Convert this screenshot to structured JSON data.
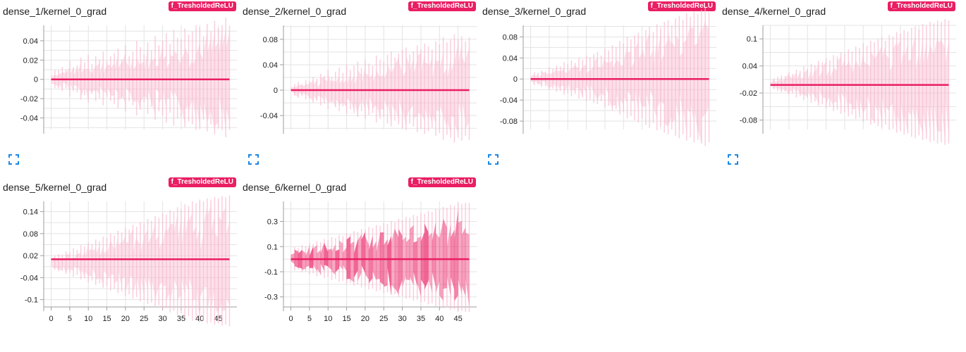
{
  "colors": {
    "accent": "#e91e63",
    "fill_light": "#f8bbd0",
    "grid": "#e3e3e3"
  },
  "icons": {
    "expand": "expand-icon"
  },
  "charts": [
    {
      "title": "dense_1/kernel_0_grad",
      "run_badge": "f_TresholdedReLU",
      "has_expand": true,
      "band": "light",
      "chart_data": {
        "type": "area",
        "y_ticks": [
          0.04,
          0.02,
          0,
          -0.02,
          -0.04
        ],
        "y_tick_labels": [
          "0.04",
          "0.02",
          "0",
          "-0.02",
          "-0.04"
        ],
        "ylim": [
          -0.052,
          0.056
        ],
        "spread_per_step": [
          0.005,
          0.006,
          0.006,
          0.008,
          0.006,
          0.012,
          0.008,
          0.009,
          0.014,
          0.011,
          0.016,
          0.01,
          0.015,
          0.013,
          0.018,
          0.012,
          0.015,
          0.017,
          0.02,
          0.013,
          0.022,
          0.015,
          0.018,
          0.025,
          0.021,
          0.016,
          0.024,
          0.019,
          0.028,
          0.022,
          0.025,
          0.03,
          0.023,
          0.032,
          0.027,
          0.026,
          0.033,
          0.029,
          0.031,
          0.035,
          0.034,
          0.028,
          0.036,
          0.031,
          0.038,
          0.033,
          0.035,
          0.04,
          0.035
        ]
      }
    },
    {
      "title": "dense_2/kernel_0_grad",
      "run_badge": "f_TresholdedReLU",
      "has_expand": true,
      "band": "light",
      "chart_data": {
        "type": "area",
        "y_ticks": [
          0.08,
          0.04,
          0,
          -0.04
        ],
        "y_tick_labels": [
          "0.08",
          "0.04",
          "0",
          "-0.04"
        ],
        "ylim": [
          -0.062,
          0.102
        ],
        "spread_per_step": [
          0.004,
          0.006,
          0.008,
          0.006,
          0.01,
          0.009,
          0.013,
          0.011,
          0.016,
          0.014,
          0.02,
          0.013,
          0.018,
          0.022,
          0.017,
          0.025,
          0.02,
          0.024,
          0.028,
          0.022,
          0.03,
          0.026,
          0.024,
          0.034,
          0.03,
          0.028,
          0.035,
          0.038,
          0.032,
          0.036,
          0.04,
          0.042,
          0.035,
          0.038,
          0.044,
          0.04,
          0.046,
          0.043,
          0.04,
          0.048,
          0.045,
          0.052,
          0.047,
          0.05,
          0.055,
          0.05,
          0.053,
          0.048,
          0.052
        ]
      }
    },
    {
      "title": "dense_3/kernel_0_grad",
      "run_badge": "f_TresholdedReLU",
      "has_expand": true,
      "band": "light",
      "chart_data": {
        "type": "area",
        "y_ticks": [
          0.08,
          0.04,
          0,
          -0.04,
          -0.08
        ],
        "y_tick_labels": [
          "0.08",
          "0.04",
          "0",
          "-0.04",
          "-0.08"
        ],
        "ylim": [
          -0.096,
          0.102
        ],
        "spread_per_step": [
          0.004,
          0.008,
          0.007,
          0.01,
          0.009,
          0.014,
          0.012,
          0.016,
          0.015,
          0.02,
          0.018,
          0.022,
          0.019,
          0.025,
          0.023,
          0.028,
          0.026,
          0.03,
          0.032,
          0.028,
          0.036,
          0.034,
          0.04,
          0.038,
          0.045,
          0.042,
          0.05,
          0.047,
          0.052,
          0.055,
          0.05,
          0.058,
          0.062,
          0.056,
          0.065,
          0.06,
          0.068,
          0.07,
          0.064,
          0.072,
          0.075,
          0.07,
          0.078,
          0.074,
          0.08,
          0.077,
          0.082,
          0.085,
          0.08
        ]
      }
    },
    {
      "title": "dense_4/kernel_0_grad",
      "run_badge": "f_TresholdedReLU",
      "has_expand": true,
      "band": "light",
      "chart_data": {
        "type": "area",
        "y_ticks": [
          0.1,
          0.04,
          -0.02,
          -0.08
        ],
        "y_tick_labels": [
          "0.1",
          "0.04",
          "-0.02",
          "-0.08"
        ],
        "ylim": [
          -0.101,
          0.13
        ],
        "spread_per_step": [
          0.006,
          0.008,
          0.01,
          0.012,
          0.011,
          0.016,
          0.014,
          0.02,
          0.018,
          0.024,
          0.021,
          0.028,
          0.026,
          0.032,
          0.03,
          0.036,
          0.033,
          0.04,
          0.038,
          0.044,
          0.042,
          0.048,
          0.045,
          0.052,
          0.05,
          0.056,
          0.053,
          0.06,
          0.058,
          0.062,
          0.065,
          0.06,
          0.068,
          0.066,
          0.072,
          0.07,
          0.075,
          0.073,
          0.078,
          0.08,
          0.076,
          0.083,
          0.081,
          0.086,
          0.084,
          0.088,
          0.086,
          0.09,
          0.088
        ]
      }
    },
    {
      "title": "dense_5/kernel_0_grad",
      "run_badge": "f_TresholdedReLU",
      "has_expand": false,
      "band": "light",
      "chart_data": {
        "type": "area",
        "y_ticks": [
          0.14,
          0.08,
          0.02,
          -0.04,
          -0.1
        ],
        "y_tick_labels": [
          "0.14",
          "0.08",
          "0.02",
          "-0.04",
          "-0.1"
        ],
        "ylim": [
          -0.12,
          0.168
        ],
        "x_ticks": [
          0,
          5,
          10,
          15,
          20,
          25,
          30,
          35,
          40,
          45
        ],
        "x_tick_labels": [
          "0",
          "5",
          "10",
          "15",
          "20",
          "25",
          "30",
          "35",
          "40",
          "45"
        ],
        "xlim": [
          -2,
          50
        ],
        "spread_per_step": [
          0.01,
          0.012,
          0.015,
          0.014,
          0.02,
          0.018,
          0.025,
          0.022,
          0.03,
          0.028,
          0.035,
          0.032,
          0.04,
          0.037,
          0.045,
          0.042,
          0.05,
          0.047,
          0.055,
          0.052,
          0.06,
          0.057,
          0.065,
          0.062,
          0.07,
          0.067,
          0.075,
          0.072,
          0.08,
          0.077,
          0.085,
          0.082,
          0.09,
          0.087,
          0.095,
          0.092,
          0.1,
          0.097,
          0.105,
          0.102,
          0.108,
          0.105,
          0.11,
          0.108,
          0.112,
          0.11,
          0.114,
          0.112,
          0.115
        ]
      }
    },
    {
      "title": "dense_6/kernel_0_grad",
      "run_badge": "f_TresholdedReLU",
      "has_expand": false,
      "band": "dark",
      "chart_data": {
        "type": "area",
        "y_ticks": [
          0.3,
          0.1,
          -0.1,
          -0.3
        ],
        "y_tick_labels": [
          "0.3",
          "0.1",
          "-0.1",
          "-0.3"
        ],
        "ylim": [
          -0.38,
          0.46
        ],
        "x_ticks": [
          0,
          5,
          10,
          15,
          20,
          25,
          30,
          35,
          40,
          45
        ],
        "x_tick_labels": [
          "0",
          "5",
          "10",
          "15",
          "20",
          "25",
          "30",
          "35",
          "40",
          "45"
        ],
        "xlim": [
          -2,
          50
        ],
        "spread_per_step": [
          0.04,
          0.06,
          0.055,
          0.07,
          0.065,
          0.08,
          0.075,
          0.09,
          0.085,
          0.1,
          0.095,
          0.11,
          0.105,
          0.12,
          0.115,
          0.13,
          0.125,
          0.14,
          0.135,
          0.15,
          0.145,
          0.16,
          0.155,
          0.17,
          0.165,
          0.18,
          0.175,
          0.19,
          0.185,
          0.2,
          0.195,
          0.21,
          0.205,
          0.22,
          0.215,
          0.23,
          0.225,
          0.24,
          0.235,
          0.25,
          0.245,
          0.26,
          0.255,
          0.27,
          0.265,
          0.28,
          0.275,
          0.28,
          0.28
        ]
      }
    }
  ]
}
